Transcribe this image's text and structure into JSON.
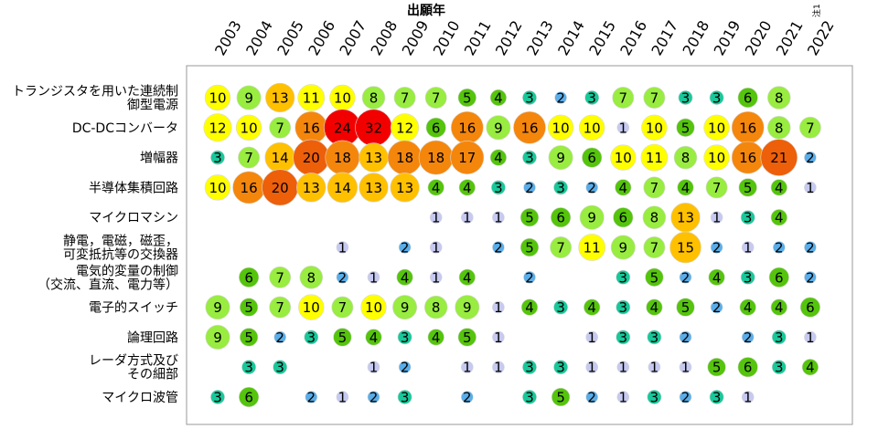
{
  "chart_data": {
    "type": "bubble-matrix",
    "xlabel": "出願年",
    "x_note": "注1",
    "years": [
      "2003",
      "2004",
      "2005",
      "2006",
      "2007",
      "2008",
      "2009",
      "2010",
      "2011",
      "2012",
      "2013",
      "2014",
      "2015",
      "2016",
      "2017",
      "2018",
      "2019",
      "2020",
      "2021",
      "2022"
    ],
    "rows": [
      {
        "label_lines": [
          "トランジスタを用いた連続制",
          "御型電源"
        ],
        "values": [
          10,
          9,
          13,
          11,
          10,
          8,
          7,
          7,
          5,
          4,
          3,
          2,
          3,
          7,
          7,
          3,
          3,
          6,
          8,
          null
        ]
      },
      {
        "label_lines": [
          "DC-DCコンバータ"
        ],
        "values": [
          12,
          10,
          7,
          16,
          24,
          32,
          12,
          6,
          16,
          9,
          16,
          10,
          10,
          1,
          10,
          5,
          10,
          16,
          8,
          7
        ]
      },
      {
        "label_lines": [
          "増幅器"
        ],
        "values": [
          3,
          7,
          14,
          20,
          18,
          13,
          18,
          18,
          17,
          4,
          3,
          9,
          6,
          10,
          11,
          8,
          10,
          16,
          21,
          2
        ]
      },
      {
        "label_lines": [
          "半導体集積回路"
        ],
        "values": [
          10,
          16,
          20,
          13,
          14,
          13,
          13,
          4,
          4,
          3,
          2,
          3,
          2,
          4,
          7,
          4,
          7,
          5,
          4,
          1
        ]
      },
      {
        "label_lines": [
          "マイクロマシン"
        ],
        "values": [
          null,
          null,
          null,
          null,
          null,
          null,
          null,
          1,
          1,
          1,
          5,
          6,
          9,
          6,
          8,
          13,
          1,
          3,
          4,
          null
        ]
      },
      {
        "label_lines": [
          "静電，電磁，磁歪，",
          "可変抵抗等の交換器"
        ],
        "values": [
          null,
          null,
          null,
          null,
          1,
          null,
          2,
          1,
          null,
          2,
          5,
          7,
          11,
          9,
          7,
          15,
          2,
          1,
          2,
          2
        ]
      },
      {
        "label_lines": [
          "電気的変量の制御",
          "（交流、直流、電力等）"
        ],
        "values": [
          null,
          6,
          7,
          8,
          2,
          1,
          4,
          1,
          4,
          null,
          2,
          null,
          null,
          3,
          5,
          2,
          4,
          3,
          6,
          2
        ]
      },
      {
        "label_lines": [
          "電子的スイッチ"
        ],
        "values": [
          9,
          5,
          7,
          10,
          7,
          10,
          9,
          8,
          9,
          1,
          4,
          3,
          4,
          3,
          4,
          5,
          2,
          4,
          4,
          6
        ]
      },
      {
        "label_lines": [
          "論理回路"
        ],
        "values": [
          9,
          5,
          2,
          3,
          5,
          4,
          3,
          4,
          5,
          1,
          null,
          null,
          1,
          3,
          3,
          2,
          null,
          2,
          3,
          1
        ]
      },
      {
        "label_lines": [
          "レーダ方式及び",
          "その細部"
        ],
        "values": [
          null,
          3,
          3,
          null,
          null,
          1,
          2,
          null,
          1,
          1,
          3,
          3,
          1,
          1,
          1,
          1,
          5,
          6,
          3,
          4
        ]
      },
      {
        "label_lines": [
          "マイクロ波管"
        ],
        "values": [
          3,
          6,
          null,
          2,
          1,
          2,
          3,
          null,
          2,
          null,
          3,
          5,
          2,
          1,
          3,
          2,
          3,
          1,
          null,
          null
        ]
      }
    ],
    "color_scale": [
      {
        "max": 1,
        "color": "#c6c9f0"
      },
      {
        "max": 2,
        "color": "#5aade8"
      },
      {
        "max": 3,
        "color": "#18c89a"
      },
      {
        "max": 6,
        "color": "#55c40c"
      },
      {
        "max": 9,
        "color": "#99ec40"
      },
      {
        "max": 12,
        "color": "#ffff00"
      },
      {
        "max": 15,
        "color": "#ffc000"
      },
      {
        "max": 18,
        "color": "#f5860c"
      },
      {
        "max": 23,
        "color": "#ee5f0a"
      },
      {
        "max": 999,
        "color": "#f20000"
      }
    ],
    "grid": false
  }
}
